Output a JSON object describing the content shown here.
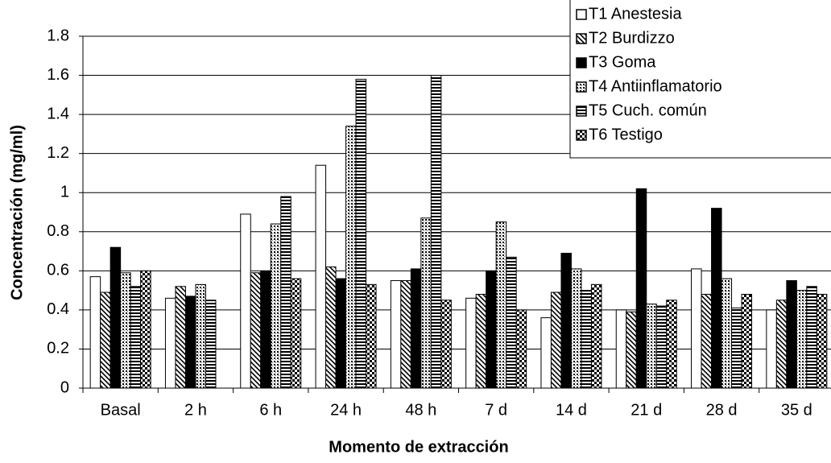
{
  "chart_data": {
    "type": "bar",
    "xlabel": "Momento de extracción",
    "ylabel": "Concentración (mg/ml)",
    "categories": [
      "Basal",
      "2 h",
      "6 h",
      "24 h",
      "48 h",
      "7 d",
      "14 d",
      "21 d",
      "28 d",
      "35 d"
    ],
    "series": [
      {
        "name": "T1 Anestesia",
        "color": "#ffffff",
        "pattern": "solid",
        "values": [
          0.57,
          0.46,
          0.89,
          1.14,
          0.55,
          0.46,
          0.36,
          0.4,
          0.61,
          0.4
        ]
      },
      {
        "name": "T2 Burdizzo",
        "color": "#000000",
        "pattern": "diagonal",
        "values": [
          0.49,
          0.52,
          0.59,
          0.62,
          0.55,
          0.48,
          0.49,
          0.39,
          0.48,
          0.45
        ]
      },
      {
        "name": "T3 Goma",
        "color": "#000000",
        "pattern": "solid",
        "values": [
          0.72,
          0.47,
          0.6,
          0.56,
          0.61,
          0.6,
          0.69,
          1.02,
          0.92,
          0.55
        ]
      },
      {
        "name": "T4 Antiinflamatorio",
        "color": "#000000",
        "pattern": "dots",
        "values": [
          0.59,
          0.53,
          0.84,
          1.34,
          0.87,
          0.85,
          0.61,
          0.43,
          0.56,
          0.5
        ]
      },
      {
        "name": "T5 Cuch. común",
        "color": "#000000",
        "pattern": "horizontal",
        "values": [
          0.52,
          0.45,
          0.98,
          1.58,
          1.6,
          0.67,
          0.5,
          0.42,
          0.41,
          0.52
        ]
      },
      {
        "name": "T6 Testigo",
        "color": "#000000",
        "pattern": "checker",
        "values": [
          0.6,
          null,
          0.56,
          0.53,
          0.45,
          0.4,
          0.53,
          0.45,
          0.48,
          0.48
        ]
      }
    ],
    "ylim": [
      0,
      1.8
    ],
    "yticks": [
      0,
      0.2,
      0.4,
      0.6,
      0.8,
      1,
      1.2,
      1.4,
      1.6,
      1.8
    ],
    "grid": true
  }
}
